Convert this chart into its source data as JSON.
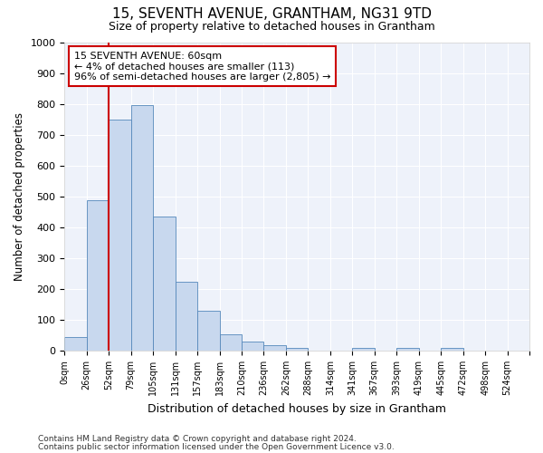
{
  "title": "15, SEVENTH AVENUE, GRANTHAM, NG31 9TD",
  "subtitle": "Size of property relative to detached houses in Grantham",
  "xlabel": "Distribution of detached houses by size in Grantham",
  "ylabel": "Number of detached properties",
  "bar_color": "#c8d8ee",
  "bar_edge_color": "#5588bb",
  "background_color": "#eef2fa",
  "grid_color": "#ffffff",
  "categories": [
    "0sqm",
    "26sqm",
    "52sqm",
    "79sqm",
    "105sqm",
    "131sqm",
    "157sqm",
    "183sqm",
    "210sqm",
    "236sqm",
    "262sqm",
    "288sqm",
    "314sqm",
    "341sqm",
    "367sqm",
    "393sqm",
    "419sqm",
    "445sqm",
    "472sqm",
    "498sqm",
    "524sqm"
  ],
  "values": [
    45,
    488,
    750,
    795,
    435,
    222,
    128,
    52,
    30,
    18,
    10,
    0,
    0,
    8,
    0,
    10,
    0,
    10,
    0,
    0,
    0
  ],
  "ylim": [
    0,
    1000
  ],
  "yticks": [
    0,
    100,
    200,
    300,
    400,
    500,
    600,
    700,
    800,
    900,
    1000
  ],
  "property_label": "15 SEVENTH AVENUE: 60sqm",
  "annotation_line1": "← 4% of detached houses are smaller (113)",
  "annotation_line2": "96% of semi-detached houses are larger (2,805) →",
  "footer_line1": "Contains HM Land Registry data © Crown copyright and database right 2024.",
  "footer_line2": "Contains public sector information licensed under the Open Government Licence v3.0.",
  "red_line_color": "#cc0000",
  "annotation_box_color": "#cc0000",
  "red_line_index": 2,
  "figsize": [
    6.0,
    5.0
  ],
  "dpi": 100
}
